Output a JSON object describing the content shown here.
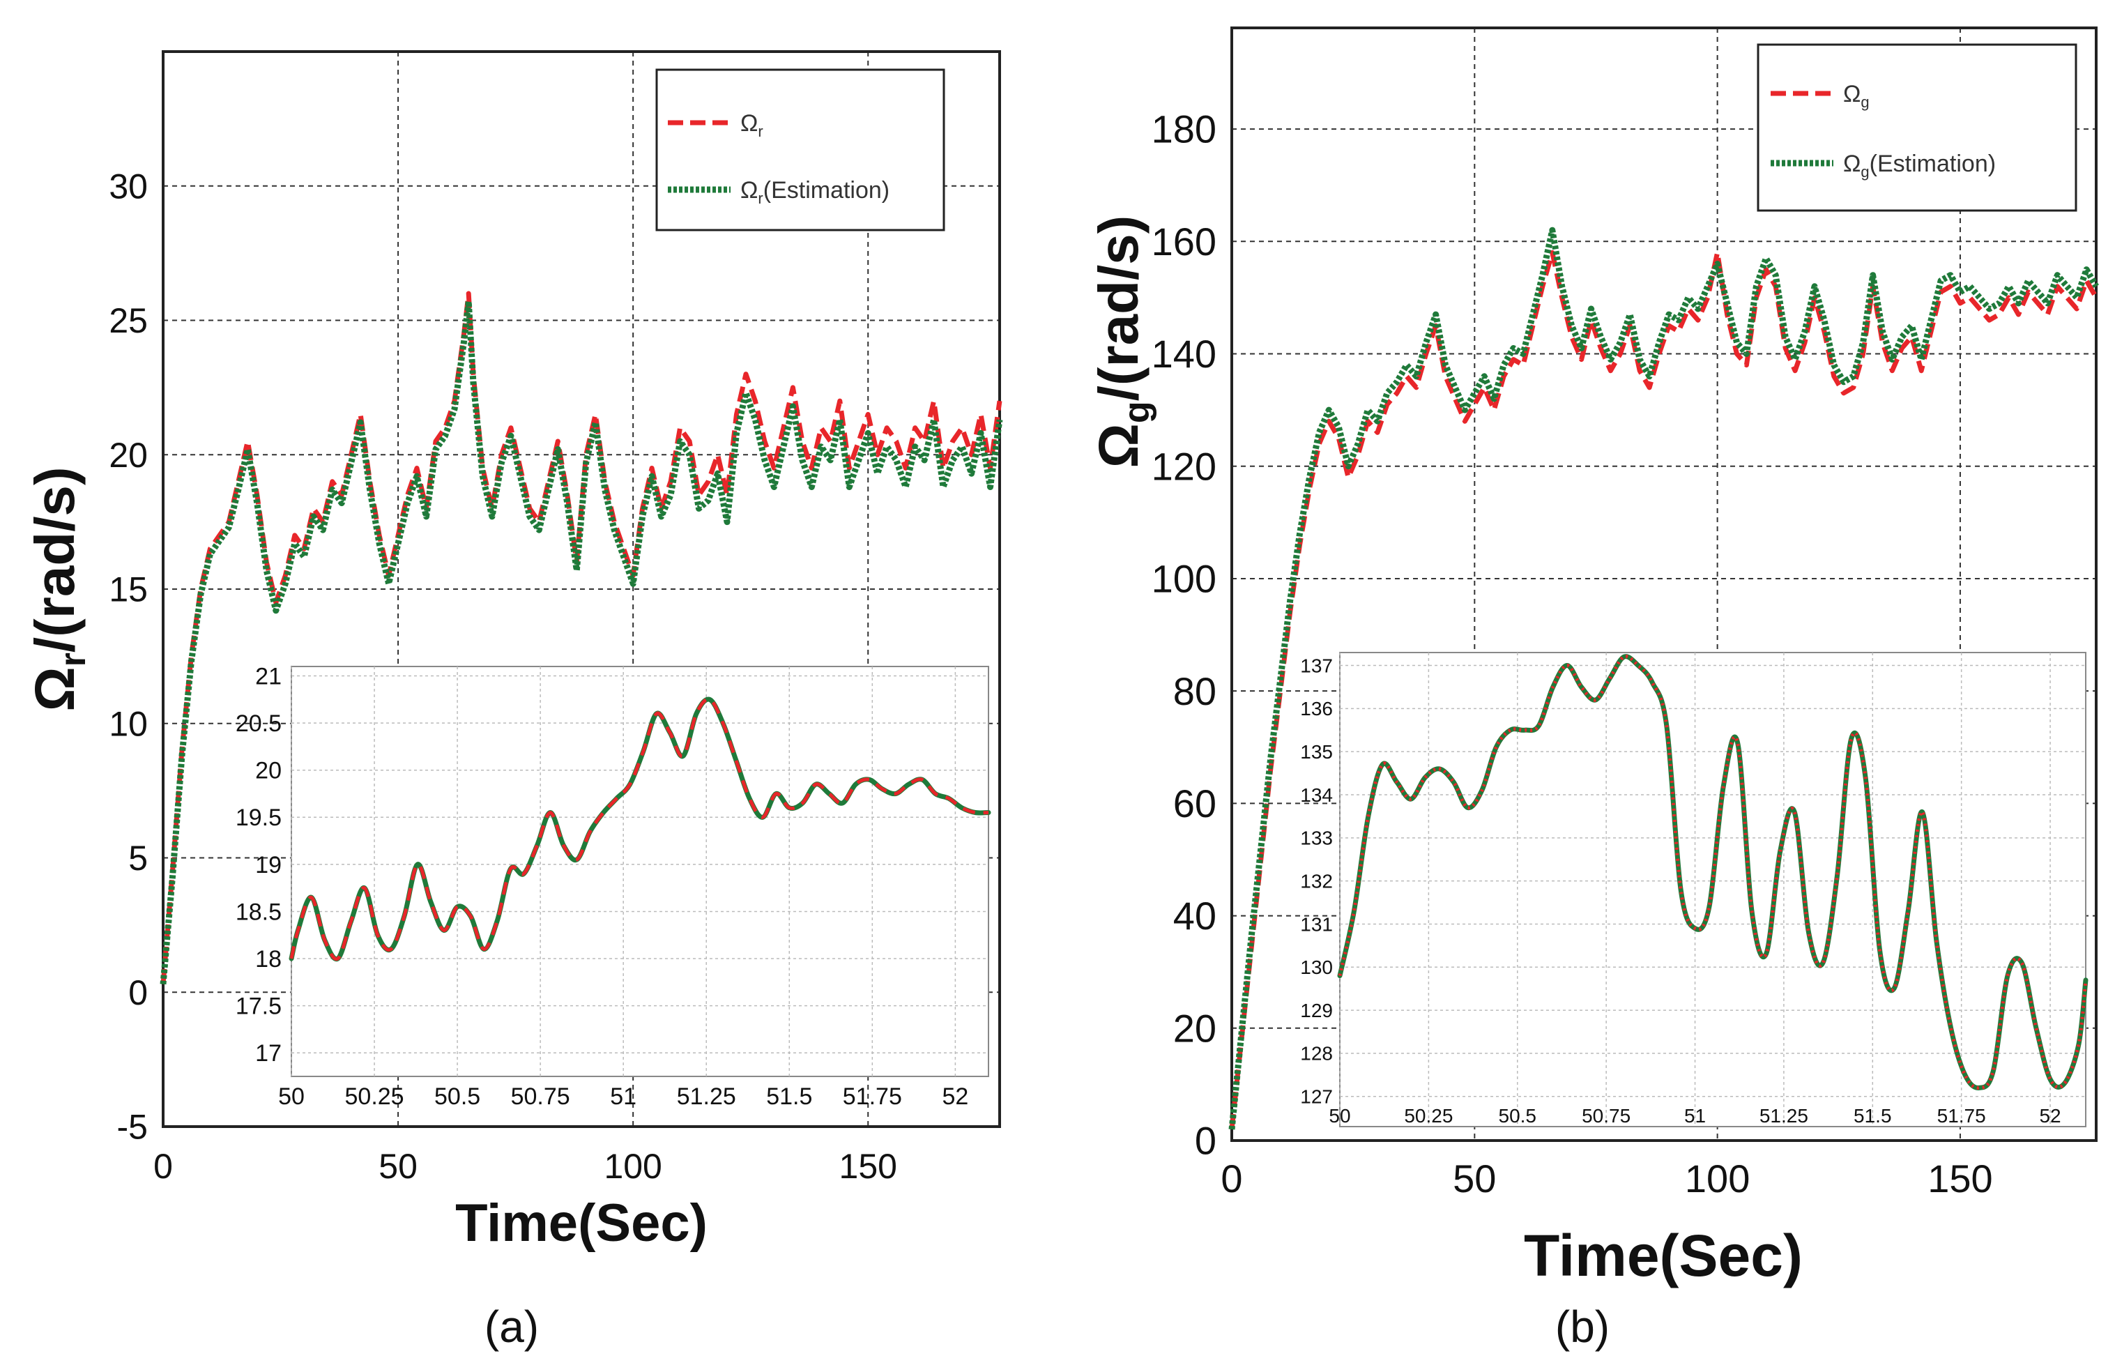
{
  "chart_data": [
    {
      "panel_caption": "(a)",
      "type": "line",
      "xlabel": "Time(Sec)",
      "ylabel_symbol": "Ω",
      "ylabel_sub": "r",
      "ylabel_rest": "/(rad/s)",
      "xlim": [
        0,
        178
      ],
      "ylim": [
        -5,
        35
      ],
      "xticks": [
        0,
        50,
        100,
        150
      ],
      "yticks": [
        -5,
        0,
        5,
        10,
        15,
        20,
        25,
        30
      ],
      "grid": true,
      "legend_position": "top-right",
      "colors": {
        "actual": "#e8262a",
        "estimation": "#1f7a3a"
      },
      "series": [
        {
          "name_symbol": "Ω",
          "name_sub": "r",
          "name_rest": "",
          "style": "dashed",
          "x": [
            0,
            2,
            4,
            6,
            8,
            10,
            12,
            14,
            16,
            18,
            20,
            22,
            24,
            26,
            28,
            30,
            32,
            34,
            36,
            38,
            40,
            42,
            44,
            46,
            48,
            50,
            52,
            54,
            56,
            58,
            60,
            62,
            64,
            65,
            66,
            68,
            70,
            72,
            74,
            76,
            78,
            80,
            82,
            84,
            86,
            88,
            90,
            92,
            94,
            96,
            98,
            100,
            102,
            104,
            106,
            108,
            110,
            112,
            114,
            116,
            118,
            120,
            122,
            124,
            126,
            128,
            130,
            132,
            134,
            136,
            138,
            140,
            142,
            144,
            146,
            148,
            150,
            152,
            154,
            156,
            158,
            160,
            162,
            164,
            166,
            168,
            170,
            172,
            174,
            176,
            178
          ],
          "values": [
            0.3,
            4.5,
            9,
            12.5,
            15,
            16.5,
            17,
            17.5,
            19,
            20.5,
            18.5,
            16,
            14.5,
            15.5,
            17,
            16.5,
            18,
            17.5,
            19,
            18.5,
            20,
            21.5,
            19,
            17,
            15.5,
            17,
            18.5,
            19.5,
            18,
            20.5,
            21,
            22,
            24.5,
            26,
            23,
            19.5,
            18,
            20,
            21,
            19.5,
            18,
            17.5,
            19,
            20.5,
            18.5,
            16,
            20,
            21.5,
            19,
            17.5,
            16.5,
            15.5,
            18,
            19.5,
            18,
            19,
            21,
            20.5,
            18.5,
            19,
            20,
            18.5,
            21.5,
            23,
            22,
            20.5,
            19.5,
            21,
            22.5,
            20.5,
            19.5,
            21,
            20.5,
            22,
            19.5,
            20.5,
            21.5,
            20,
            21,
            20.5,
            19.5,
            21,
            20.5,
            22,
            19.5,
            20.5,
            21,
            20,
            21.5,
            19.5,
            22
          ]
        },
        {
          "name_symbol": "Ω",
          "name_sub": "r",
          "name_rest": "(Estimation)",
          "style": "dotted",
          "x": [
            0,
            2,
            4,
            6,
            8,
            10,
            12,
            14,
            16,
            18,
            20,
            22,
            24,
            26,
            28,
            30,
            32,
            34,
            36,
            38,
            40,
            42,
            44,
            46,
            48,
            50,
            52,
            54,
            56,
            58,
            60,
            62,
            64,
            65,
            66,
            68,
            70,
            72,
            74,
            76,
            78,
            80,
            82,
            84,
            86,
            88,
            90,
            92,
            94,
            96,
            98,
            100,
            102,
            104,
            106,
            108,
            110,
            112,
            114,
            116,
            118,
            120,
            122,
            124,
            126,
            128,
            130,
            132,
            134,
            136,
            138,
            140,
            142,
            144,
            146,
            148,
            150,
            152,
            154,
            156,
            158,
            160,
            162,
            164,
            166,
            168,
            170,
            172,
            174,
            176,
            178
          ],
          "values": [
            0.3,
            4.3,
            8.8,
            12.3,
            14.8,
            16.3,
            16.8,
            17.3,
            18.7,
            20.2,
            18.2,
            15.7,
            14.2,
            15.2,
            16.7,
            16.2,
            17.7,
            17.2,
            18.7,
            18.2,
            19.7,
            21.2,
            18.7,
            16.7,
            15.2,
            16.7,
            18.2,
            19.2,
            17.7,
            20.2,
            20.7,
            21.7,
            24.2,
            25.7,
            22.7,
            19.2,
            17.7,
            19.7,
            20.7,
            19.2,
            17.7,
            17.2,
            18.7,
            20.2,
            18.2,
            15.7,
            19.7,
            21.2,
            18.7,
            17.2,
            16.2,
            15.2,
            17.7,
            19.2,
            17.7,
            18.5,
            20.5,
            20,
            18,
            18.3,
            19.3,
            17.5,
            20.8,
            22.3,
            21.3,
            19.8,
            18.8,
            20.3,
            21.8,
            19.8,
            18.8,
            20.3,
            19.8,
            21.3,
            18.8,
            19.8,
            20.8,
            19.3,
            20.3,
            19.8,
            18.8,
            20.3,
            19.8,
            21.3,
            18.8,
            19.8,
            20.3,
            19.3,
            20.8,
            18.8,
            21.3
          ]
        }
      ],
      "inset": {
        "type": "line",
        "xlim": [
          50,
          52.1
        ],
        "ylim": [
          16.75,
          21.1
        ],
        "xticks": [
          "50",
          "50.25",
          "50.5",
          "50.75",
          "51",
          "51.25",
          "51.5",
          "51.75",
          "52"
        ],
        "yticks": [
          "17",
          "17.5",
          "18",
          "18.5",
          "19",
          "19.5",
          "20",
          "20.5",
          "21"
        ],
        "x": [
          50.0,
          50.02,
          50.06,
          50.1,
          50.14,
          50.18,
          50.22,
          50.26,
          50.3,
          50.34,
          50.38,
          50.42,
          50.46,
          50.5,
          50.54,
          50.58,
          50.62,
          50.66,
          50.7,
          50.74,
          50.78,
          50.82,
          50.86,
          50.9,
          50.94,
          50.98,
          51.02,
          51.06,
          51.1,
          51.14,
          51.18,
          51.22,
          51.26,
          51.3,
          51.34,
          51.38,
          51.42,
          51.46,
          51.5,
          51.54,
          51.58,
          51.62,
          51.66,
          51.7,
          51.74,
          51.78,
          51.82,
          51.86,
          51.9,
          51.94,
          51.98,
          52.02,
          52.06,
          52.1
        ],
        "values": [
          18.0,
          18.3,
          18.65,
          18.2,
          18.0,
          18.4,
          18.75,
          18.25,
          18.1,
          18.45,
          19.0,
          18.6,
          18.3,
          18.55,
          18.45,
          18.1,
          18.4,
          18.95,
          18.9,
          19.2,
          19.55,
          19.2,
          19.05,
          19.35,
          19.55,
          19.7,
          19.85,
          20.2,
          20.6,
          20.4,
          20.15,
          20.6,
          20.75,
          20.5,
          20.1,
          19.7,
          19.5,
          19.75,
          19.6,
          19.65,
          19.85,
          19.75,
          19.65,
          19.85,
          19.9,
          19.8,
          19.75,
          19.85,
          19.9,
          19.75,
          19.7,
          19.6,
          19.55,
          19.55
        ]
      }
    },
    {
      "panel_caption": "(b)",
      "type": "line",
      "xlabel": "Time(Sec)",
      "ylabel_symbol": "Ω",
      "ylabel_sub": "g",
      "ylabel_rest": "/(rad/s)",
      "xlim": [
        0,
        178
      ],
      "ylim": [
        0,
        198
      ],
      "xticks": [
        0,
        50,
        100,
        150
      ],
      "yticks": [
        0,
        20,
        40,
        60,
        80,
        100,
        120,
        140,
        160,
        180
      ],
      "grid": true,
      "legend_position": "top-right",
      "colors": {
        "actual": "#e8262a",
        "estimation": "#1f7a3a"
      },
      "series": [
        {
          "name_symbol": "Ω",
          "name_sub": "g",
          "name_rest": "",
          "style": "dashed",
          "x": [
            0,
            2,
            4,
            6,
            8,
            10,
            12,
            14,
            16,
            18,
            20,
            22,
            24,
            26,
            28,
            30,
            32,
            34,
            36,
            38,
            40,
            42,
            44,
            46,
            48,
            50,
            52,
            54,
            56,
            58,
            60,
            62,
            64,
            66,
            68,
            70,
            72,
            74,
            76,
            78,
            80,
            82,
            84,
            86,
            88,
            90,
            92,
            94,
            96,
            98,
            100,
            102,
            104,
            106,
            108,
            110,
            112,
            114,
            116,
            118,
            120,
            122,
            124,
            126,
            128,
            130,
            132,
            134,
            136,
            138,
            140,
            142,
            144,
            146,
            148,
            150,
            152,
            154,
            156,
            158,
            160,
            162,
            164,
            166,
            168,
            170,
            172,
            174,
            176,
            178
          ],
          "values": [
            2,
            18,
            34,
            50,
            66,
            80,
            94,
            106,
            116,
            124,
            128,
            125,
            118,
            122,
            128,
            126,
            131,
            133,
            136,
            134,
            140,
            145,
            136,
            132,
            128,
            131,
            134,
            130,
            136,
            139,
            138,
            145,
            152,
            158,
            150,
            143,
            139,
            146,
            141,
            137,
            140,
            145,
            137,
            134,
            140,
            145,
            144,
            148,
            146,
            150,
            158,
            147,
            140,
            138,
            150,
            155,
            152,
            141,
            137,
            142,
            150,
            144,
            136,
            133,
            134,
            140,
            152,
            142,
            137,
            141,
            143,
            137,
            144,
            151,
            152,
            149,
            150,
            148,
            146,
            147,
            150,
            147,
            151,
            149,
            147,
            152,
            150,
            148,
            153,
            150
          ]
        },
        {
          "name_symbol": "Ω",
          "name_sub": "g",
          "name_rest": "(Estimation)",
          "style": "dotted",
          "x": [
            0,
            2,
            4,
            6,
            8,
            10,
            12,
            14,
            16,
            18,
            20,
            22,
            24,
            26,
            28,
            30,
            32,
            34,
            36,
            38,
            40,
            42,
            44,
            46,
            48,
            50,
            52,
            54,
            56,
            58,
            60,
            62,
            64,
            66,
            68,
            70,
            72,
            74,
            76,
            78,
            80,
            82,
            84,
            86,
            88,
            90,
            92,
            94,
            96,
            98,
            100,
            102,
            104,
            106,
            108,
            110,
            112,
            114,
            116,
            118,
            120,
            122,
            124,
            126,
            128,
            130,
            132,
            134,
            136,
            138,
            140,
            142,
            144,
            146,
            148,
            150,
            152,
            154,
            156,
            158,
            160,
            162,
            164,
            166,
            168,
            170,
            172,
            174,
            176,
            178
          ],
          "values": [
            2,
            19,
            36,
            52,
            68,
            82,
            96,
            108,
            118,
            126,
            130,
            127,
            120,
            124,
            130,
            128,
            133,
            135,
            138,
            136,
            142,
            147,
            138,
            134,
            130,
            133,
            136,
            132,
            138,
            141,
            140,
            147,
            154,
            162,
            152,
            145,
            141,
            148,
            143,
            139,
            142,
            147,
            139,
            136,
            142,
            147,
            146,
            150,
            148,
            152,
            156,
            149,
            142,
            140,
            152,
            157,
            154,
            143,
            139,
            144,
            152,
            146,
            138,
            135,
            136,
            142,
            154,
            144,
            139,
            143,
            145,
            139,
            146,
            153,
            154,
            151,
            152,
            150,
            148,
            149,
            152,
            149,
            153,
            151,
            149,
            154,
            152,
            150,
            155,
            152
          ]
        }
      ],
      "inset": {
        "type": "line",
        "xlim": [
          50,
          52.1
        ],
        "ylim": [
          126.3,
          137.3
        ],
        "xticks": [
          "50",
          "50.25",
          "50.5",
          "50.75",
          "51",
          "51.25",
          "51.5",
          "51.75",
          "52"
        ],
        "yticks": [
          "127",
          "128",
          "129",
          "130",
          "131",
          "132",
          "133",
          "134",
          "135",
          "136",
          "137"
        ],
        "x": [
          50.0,
          50.04,
          50.08,
          50.12,
          50.16,
          50.2,
          50.24,
          50.28,
          50.32,
          50.36,
          50.4,
          50.44,
          50.48,
          50.52,
          50.56,
          50.6,
          50.64,
          50.68,
          50.72,
          50.76,
          50.8,
          50.84,
          50.88,
          50.92,
          50.96,
          51.0,
          51.04,
          51.08,
          51.12,
          51.16,
          51.2,
          51.24,
          51.28,
          51.32,
          51.36,
          51.4,
          51.44,
          51.48,
          51.52,
          51.56,
          51.6,
          51.64,
          51.68,
          51.72,
          51.76,
          51.8,
          51.84,
          51.88,
          51.92,
          51.96,
          52.0,
          52.04,
          52.08,
          52.1
        ],
        "values": [
          129.8,
          131.3,
          133.5,
          134.7,
          134.3,
          133.9,
          134.4,
          134.6,
          134.3,
          133.7,
          134.1,
          135.1,
          135.5,
          135.5,
          135.6,
          136.5,
          137.0,
          136.5,
          136.2,
          136.7,
          137.2,
          137.0,
          136.6,
          135.6,
          131.8,
          130.9,
          131.4,
          134.2,
          135.2,
          131.3,
          130.3,
          132.7,
          133.6,
          130.8,
          130.1,
          132.1,
          135.3,
          134.4,
          130.4,
          129.5,
          131.3,
          133.6,
          130.6,
          128.6,
          127.5,
          127.2,
          127.6,
          129.8,
          130.1,
          128.6,
          127.4,
          127.3,
          128.2,
          129.7
        ]
      }
    }
  ]
}
